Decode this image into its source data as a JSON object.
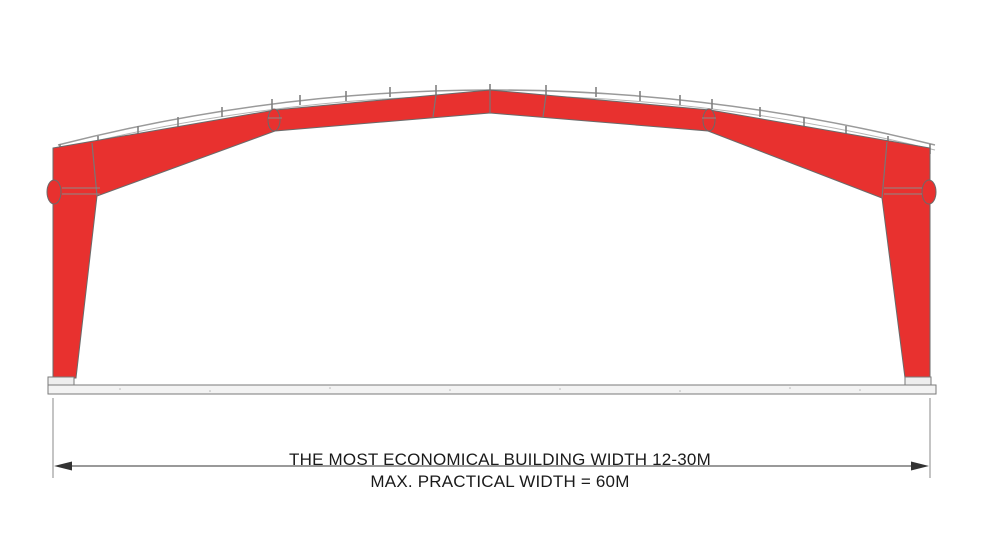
{
  "captions": {
    "economical_width": "THE MOST ECONOMICAL BUILDING WIDTH 12-30M",
    "max_width": "MAX. PRACTICAL WIDTH = 60M"
  },
  "colors": {
    "frame_red": "#e8312f",
    "outline": "#6a6a6a",
    "roof_line": "#9a9a9a",
    "text": "#1a1a1a"
  }
}
